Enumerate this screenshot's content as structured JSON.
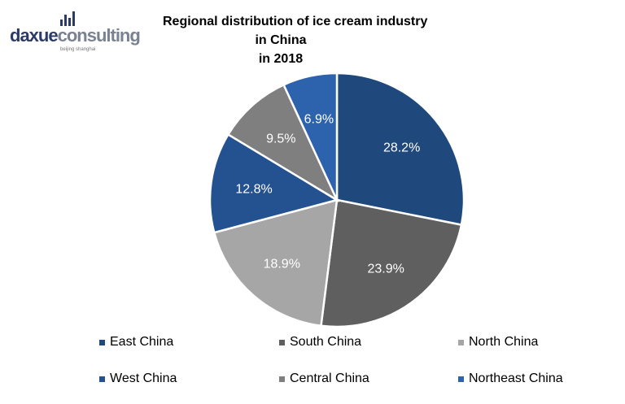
{
  "logo": {
    "part1": "daxue",
    "part2": "consulting",
    "tagline": "beijing shanghai"
  },
  "chart_data": {
    "type": "pie",
    "title": "Regional distribution of ice cream industry in China in 2018",
    "title_lines": [
      "Regional distribution of ice cream industry",
      "in China",
      "in 2018"
    ],
    "categories": [
      "East China",
      "South China",
      "North China",
      "West China",
      "Central China",
      "Northeast China"
    ],
    "values": [
      28.2,
      23.9,
      18.9,
      12.8,
      9.5,
      6.9
    ],
    "labels": [
      "28.2%",
      "23.9%",
      "18.9%",
      "12.8%",
      "9.5%",
      "6.9%"
    ],
    "colors": [
      "#1f497d",
      "#5f5f5f",
      "#a6a6a6",
      "#245190",
      "#7f7f7f",
      "#2d63ad"
    ],
    "label_colors": [
      "#ffffff",
      "#ffffff",
      "#ffffff",
      "#ffffff",
      "#ffffff",
      "#ffffff"
    ],
    "start": "12 o'clock, clockwise",
    "legend_position": "bottom"
  }
}
